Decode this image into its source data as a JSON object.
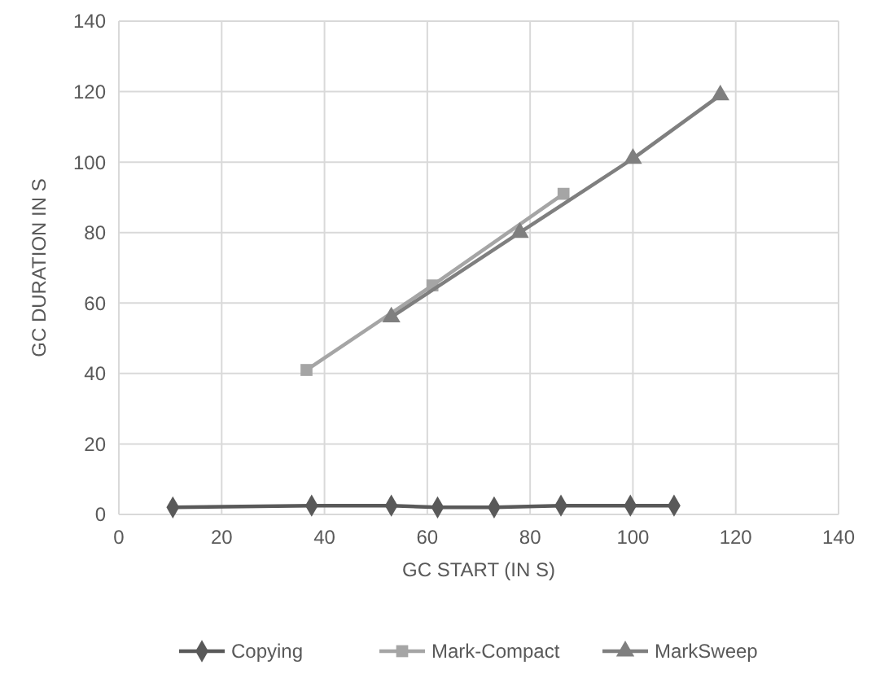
{
  "chart_data": {
    "type": "line",
    "xlabel": "GC START (IN S)",
    "ylabel": "GC DURATION IN S",
    "xlim": [
      0,
      140
    ],
    "xticks": [
      0,
      20,
      40,
      60,
      80,
      100,
      120,
      140
    ],
    "ylim": [
      0,
      140
    ],
    "yticks": [
      0,
      20,
      40,
      60,
      80,
      100,
      120,
      140
    ],
    "grid": true,
    "legend": "bottom",
    "series": [
      {
        "name": "Copying",
        "color": "#595959",
        "marker": "diamond",
        "x": [
          10.5,
          37.5,
          53,
          62,
          73,
          86,
          99.5,
          108
        ],
        "values": [
          2,
          2.5,
          2.5,
          2,
          2,
          2.5,
          2.5,
          2.5
        ]
      },
      {
        "name": "Mark-Compact",
        "color": "#a5a5a5",
        "marker": "square",
        "x": [
          36.5,
          61,
          86.5
        ],
        "values": [
          41,
          65,
          91
        ]
      },
      {
        "name": "MarkSweep",
        "color": "#7f7f7f",
        "marker": "triangle",
        "x": [
          53,
          78,
          100,
          117
        ],
        "values": [
          56,
          80,
          101,
          119
        ]
      }
    ]
  }
}
